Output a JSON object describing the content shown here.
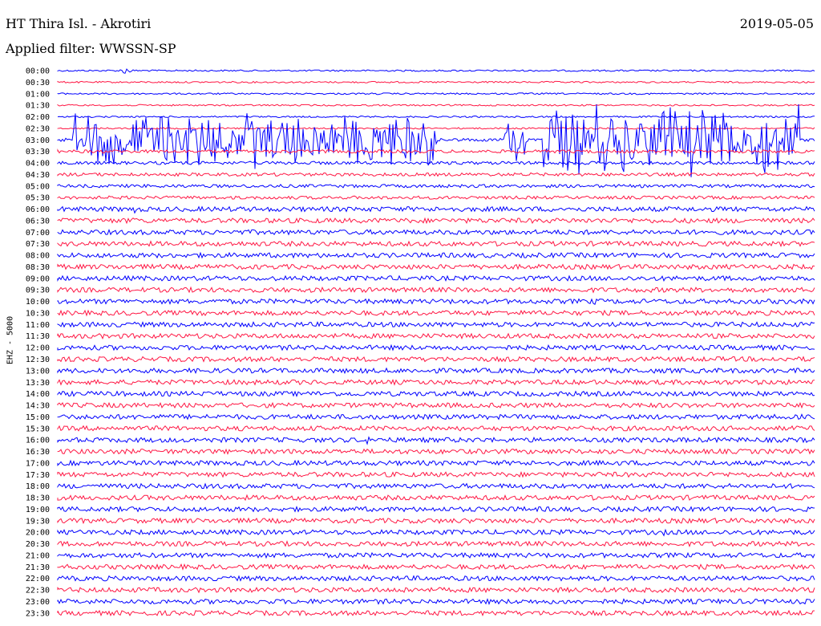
{
  "header": {
    "station": "HT Thira Isl. - Akrotiri",
    "date": "2019-05-05",
    "filter_label": "Applied filter: WWSSN-SP"
  },
  "side_label": "EHZ - 5000",
  "colors": {
    "even_hour": "#0000ff",
    "half_hour": "#ff1744"
  },
  "chart_data": {
    "type": "line",
    "title": "HT Thira Isl. - Akrotiri",
    "subtitle": "Applied filter: WWSSN-SP",
    "ylabel": "EHZ - 5000",
    "date": "2019-05-05",
    "row_labels": [
      "00:00",
      "00:30",
      "01:00",
      "01:30",
      "02:00",
      "02:30",
      "03:00",
      "03:30",
      "04:00",
      "04:30",
      "05:00",
      "05:30",
      "06:00",
      "06:30",
      "07:00",
      "07:30",
      "08:00",
      "08:30",
      "09:00",
      "09:30",
      "10:00",
      "10:30",
      "11:00",
      "11:30",
      "12:00",
      "12:30",
      "13:00",
      "13:30",
      "14:00",
      "14:30",
      "15:00",
      "15:30",
      "16:00",
      "16:30",
      "17:00",
      "17:30",
      "18:00",
      "18:30",
      "19:00",
      "19:30",
      "20:00",
      "20:30",
      "21:00",
      "21:30",
      "22:00",
      "22:30",
      "23:00",
      "23:30"
    ],
    "noise_level": [
      1,
      1,
      1,
      1,
      1,
      1,
      2,
      2,
      2,
      2,
      2,
      2,
      3,
      3,
      3,
      3,
      3,
      3,
      3,
      3,
      3,
      3,
      3,
      3,
      3,
      3,
      3,
      3,
      3,
      3,
      3,
      3,
      3,
      3,
      3,
      3,
      3,
      3,
      3,
      3,
      3,
      3,
      3,
      3,
      3,
      3,
      3,
      3
    ],
    "bursts": [
      {
        "row": 0,
        "t": 0.09,
        "amp": 6
      },
      {
        "row": 6,
        "t": 0.02,
        "amp": 40,
        "dur": 0.48
      },
      {
        "row": 6,
        "t": 0.59,
        "amp": 30,
        "dur": 0.03
      },
      {
        "row": 6,
        "t": 0.64,
        "amp": 50,
        "dur": 0.34
      },
      {
        "row": 12,
        "t": 0.1,
        "amp": 7
      },
      {
        "row": 13,
        "t": 0.1,
        "amp": 6
      },
      {
        "row": 16,
        "t": 0.2,
        "amp": 7
      },
      {
        "row": 20,
        "t": 0.71,
        "amp": 6
      },
      {
        "row": 28,
        "t": 0.53,
        "amp": 5
      },
      {
        "row": 28,
        "t": 0.74,
        "amp": 5
      },
      {
        "row": 32,
        "t": 0.41,
        "amp": 6
      },
      {
        "row": 40,
        "t": 0.8,
        "amp": 5
      },
      {
        "row": 45,
        "t": 0.46,
        "amp": 6
      }
    ]
  }
}
